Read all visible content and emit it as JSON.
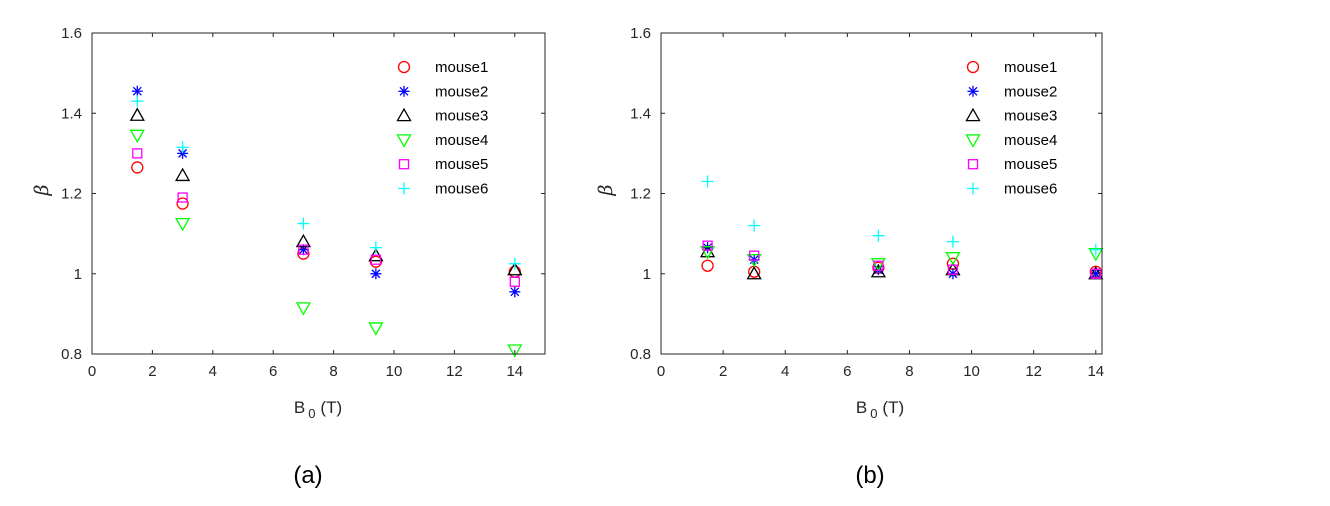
{
  "chart_data": [
    {
      "type": "scatter",
      "panel_label": "(a)",
      "xlabel": "B",
      "xlabel_sub": "0",
      "xlabel_unit": "(T)",
      "ylabel": "β",
      "xlim": [
        0,
        15
      ],
      "ylim": [
        0.8,
        1.6
      ],
      "xticks": [
        0,
        2,
        4,
        6,
        8,
        10,
        12,
        14
      ],
      "yticks": [
        0.8,
        1,
        1.2,
        1.4,
        1.6
      ],
      "legend_position": "top-right",
      "series": [
        {
          "name": "mouse1",
          "marker": "circle",
          "color": "#ff0000",
          "x": [
            1.5,
            3,
            7,
            9.4,
            14
          ],
          "y": [
            1.265,
            1.175,
            1.05,
            1.03,
            1.005
          ]
        },
        {
          "name": "mouse2",
          "marker": "asterisk",
          "color": "#0000ff",
          "x": [
            1.5,
            3,
            7,
            9.4,
            14
          ],
          "y": [
            1.455,
            1.3,
            1.06,
            1.0,
            0.955
          ]
        },
        {
          "name": "mouse3",
          "marker": "triangle-up",
          "color": "#000000",
          "x": [
            1.5,
            3,
            7,
            9.4,
            14
          ],
          "y": [
            1.395,
            1.245,
            1.08,
            1.045,
            1.01
          ]
        },
        {
          "name": "mouse4",
          "marker": "triangle-down",
          "color": "#00ff00",
          "x": [
            1.5,
            3,
            7,
            9.4,
            14
          ],
          "y": [
            1.345,
            1.125,
            0.915,
            0.865,
            0.81
          ]
        },
        {
          "name": "mouse5",
          "marker": "square",
          "color": "#ff00ff",
          "x": [
            1.5,
            3,
            7,
            9.4,
            14
          ],
          "y": [
            1.3,
            1.19,
            1.06,
            1.035,
            0.98
          ]
        },
        {
          "name": "mouse6",
          "marker": "plus",
          "color": "#00ffff",
          "x": [
            1.5,
            3,
            7,
            9.4,
            14
          ],
          "y": [
            1.43,
            1.315,
            1.125,
            1.065,
            1.025
          ]
        }
      ]
    },
    {
      "type": "scatter",
      "panel_label": "(b)",
      "xlabel": "B",
      "xlabel_sub": "0",
      "xlabel_unit": "(T)",
      "ylabel": "β",
      "xlim": [
        0,
        14.2
      ],
      "ylim": [
        0.8,
        1.6
      ],
      "xticks": [
        0,
        2,
        4,
        6,
        8,
        10,
        12,
        14
      ],
      "yticks": [
        0.8,
        1,
        1.2,
        1.4,
        1.6
      ],
      "legend_position": "top-right",
      "series": [
        {
          "name": "mouse1",
          "marker": "circle",
          "color": "#ff0000",
          "x": [
            1.5,
            3,
            7,
            9.4,
            14
          ],
          "y": [
            1.02,
            1.005,
            1.015,
            1.025,
            1.005
          ]
        },
        {
          "name": "mouse2",
          "marker": "asterisk",
          "color": "#0000ff",
          "x": [
            1.5,
            3,
            7,
            9.4,
            14
          ],
          "y": [
            1.065,
            1.035,
            1.01,
            1.0,
            1.0
          ]
        },
        {
          "name": "mouse3",
          "marker": "triangle-up",
          "color": "#000000",
          "x": [
            1.5,
            3,
            7,
            9.4,
            14
          ],
          "y": [
            1.055,
            1.0,
            1.005,
            1.01,
            1.0
          ]
        },
        {
          "name": "mouse4",
          "marker": "triangle-down",
          "color": "#00ff00",
          "x": [
            1.5,
            3,
            7,
            9.4,
            14
          ],
          "y": [
            1.055,
            1.035,
            1.025,
            1.04,
            1.05
          ]
        },
        {
          "name": "mouse5",
          "marker": "square",
          "color": "#ff00ff",
          "x": [
            1.5,
            3,
            7,
            9.4,
            14
          ],
          "y": [
            1.07,
            1.045,
            1.02,
            1.01,
            1.0
          ]
        },
        {
          "name": "mouse6",
          "marker": "plus",
          "color": "#00ffff",
          "x": [
            1.5,
            3,
            7,
            9.4,
            14
          ],
          "y": [
            1.23,
            1.12,
            1.095,
            1.08,
            1.06
          ]
        }
      ]
    }
  ]
}
